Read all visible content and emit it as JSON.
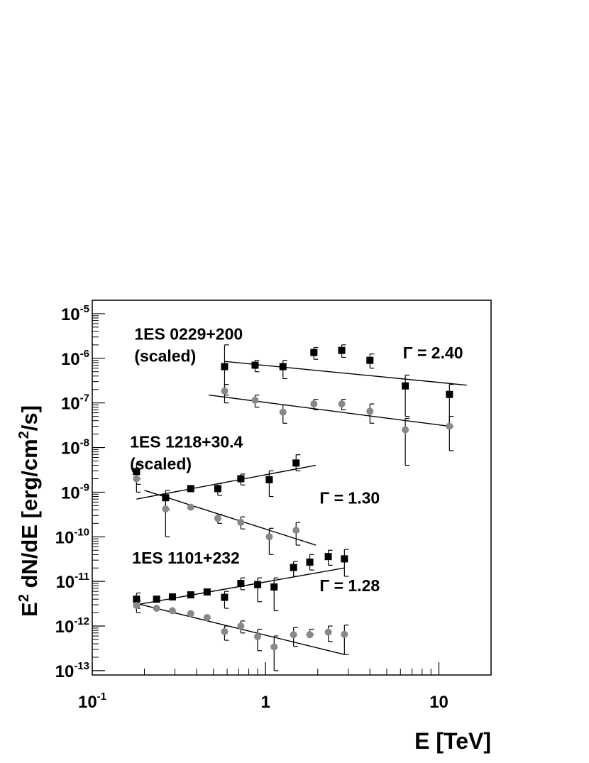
{
  "chart_data": {
    "type": "scatter",
    "xscale": "log",
    "yscale": "log",
    "xlim": [
      0.1,
      20
    ],
    "ylim": [
      8e-14,
      2e-05
    ],
    "xlabel": "E [TeV]",
    "ylabel": {
      "prefix": "E",
      "sup1": "2",
      "mid": " dN/dE [erg/cm",
      "sup2": "2",
      "suffix": "/s]"
    },
    "grid": false,
    "x_ticks": [
      {
        "value": 0.1,
        "base": "10",
        "exp": "-1"
      },
      {
        "value": 1,
        "base": "1",
        "exp": ""
      },
      {
        "value": 10,
        "base": "10",
        "exp": ""
      }
    ],
    "y_ticks": [
      {
        "value": 1e-13,
        "base": "10",
        "exp": "-13"
      },
      {
        "value": 1e-12,
        "base": "10",
        "exp": "-12"
      },
      {
        "value": 1e-11,
        "base": "10",
        "exp": "-11"
      },
      {
        "value": 1e-10,
        "base": "10",
        "exp": "-10"
      },
      {
        "value": 1e-09,
        "base": "10",
        "exp": "-9"
      },
      {
        "value": 1e-08,
        "base": "10",
        "exp": "-8"
      },
      {
        "value": 1e-07,
        "base": "10",
        "exp": "-7"
      },
      {
        "value": 1e-06,
        "base": "10",
        "exp": "-6"
      },
      {
        "value": 1e-05,
        "base": "10",
        "exp": "-5"
      }
    ],
    "annotations": [
      {
        "id": "label-0229",
        "lines": [
          "1ES 0229+200",
          "(scaled)"
        ],
        "x": 0.175,
        "y": 2.6e-06
      },
      {
        "id": "label-1218",
        "lines": [
          "1ES 1218+30.4",
          "(scaled)"
        ],
        "x": 0.165,
        "y": 1e-08
      },
      {
        "id": "label-1101",
        "lines": [
          "1ES 1101+232"
        ],
        "x": 0.17,
        "y": 2.5e-11
      },
      {
        "id": "gamma-0229",
        "lines": [
          "Γ = 2.40"
        ],
        "x": 6.2,
        "y": 1e-06
      },
      {
        "id": "gamma-1218",
        "lines": [
          "Γ = 1.30"
        ],
        "x": 2.05,
        "y": 5.5e-10
      },
      {
        "id": "gamma-1101",
        "lines": [
          "Γ = 1.28"
        ],
        "x": 2.05,
        "y": 6e-12
      }
    ],
    "series": [
      {
        "source": "1ES 0229+200",
        "marker": "square",
        "color": "#000000",
        "points": [
          {
            "x": 0.58,
            "y": 6.5e-07,
            "lo": 1.5e-07,
            "hi": 2e-06
          },
          {
            "x": 0.87,
            "y": 7e-07,
            "lo": 5e-07,
            "hi": 9e-07
          },
          {
            "x": 1.26,
            "y": 6.5e-07,
            "lo": 3.5e-07,
            "hi": 9e-07
          },
          {
            "x": 1.9,
            "y": 1.35e-06,
            "lo": 9.5e-07,
            "hi": 1.75e-06
          },
          {
            "x": 2.75,
            "y": 1.5e-06,
            "lo": 1.05e-06,
            "hi": 2e-06
          },
          {
            "x": 4.0,
            "y": 9e-07,
            "lo": 6e-07,
            "hi": 1.25e-06
          },
          {
            "x": 6.4,
            "y": 2.4e-07,
            "lo": 5e-08,
            "hi": 4.2e-07
          },
          {
            "x": 11.5,
            "y": 1.55e-07,
            "lo": 3e-08,
            "hi": 2.6e-07
          }
        ],
        "fit": {
          "x": [
            0.58,
            14.5
          ],
          "y": [
            8.5e-07,
            2.5e-07
          ]
        }
      },
      {
        "source": "1ES 0229+200",
        "marker": "circle",
        "color": "#888888",
        "points": [
          {
            "x": 0.58,
            "y": 1.85e-07,
            "lo": 1e-07,
            "hi": 2.6e-07
          },
          {
            "x": 0.87,
            "y": 1.15e-07,
            "lo": 8e-08,
            "hi": 1.5e-07
          },
          {
            "x": 1.26,
            "y": 6.2e-08,
            "lo": 3.5e-08,
            "hi": 9e-08
          },
          {
            "x": 1.9,
            "y": 9.5e-08,
            "lo": 7e-08,
            "hi": 1.2e-07
          },
          {
            "x": 2.75,
            "y": 9.5e-08,
            "lo": 7e-08,
            "hi": 1.2e-07
          },
          {
            "x": 4.0,
            "y": 6.5e-08,
            "lo": 3.5e-08,
            "hi": 9.5e-08
          },
          {
            "x": 6.4,
            "y": 2.5e-08,
            "lo": 4e-09,
            "hi": 4.5e-08
          },
          {
            "x": 11.5,
            "y": 3e-08,
            "lo": 8.5e-09,
            "hi": 5e-08
          }
        ],
        "fit": {
          "x": [
            0.47,
            11.5
          ],
          "y": [
            1.5e-07,
            3e-08
          ]
        }
      },
      {
        "source": "1ES 1218+30.4",
        "marker": "square",
        "color": "#000000",
        "points": [
          {
            "x": 0.18,
            "y": 2.9e-09,
            "lo": 1.5e-09,
            "hi": 4.5e-09
          },
          {
            "x": 0.265,
            "y": 7.5e-10,
            "lo": 4e-10,
            "hi": 1.1e-09
          },
          {
            "x": 0.37,
            "y": 1.2e-09,
            "lo": 1.2e-09,
            "hi": 1.2e-09
          },
          {
            "x": 0.53,
            "y": 1.2e-09,
            "lo": 8.5e-10,
            "hi": 1.55e-09
          },
          {
            "x": 0.72,
            "y": 2e-09,
            "lo": 1.45e-09,
            "hi": 2.55e-09
          },
          {
            "x": 1.05,
            "y": 1.9e-09,
            "lo": 8e-10,
            "hi": 3e-09
          },
          {
            "x": 1.5,
            "y": 4.5e-09,
            "lo": 3e-09,
            "hi": 6.9e-09
          }
        ],
        "fit": {
          "x": [
            0.18,
            1.95
          ],
          "y": [
            7e-10,
            4e-09
          ]
        }
      },
      {
        "source": "1ES 1218+30.4",
        "marker": "circle",
        "color": "#888888",
        "points": [
          {
            "x": 0.18,
            "y": 2e-09,
            "lo": 1e-09,
            "hi": 2e-09
          },
          {
            "x": 0.265,
            "y": 4.2e-10,
            "lo": 1e-10,
            "hi": 7.5e-10
          },
          {
            "x": 0.37,
            "y": 4.6e-10,
            "lo": 4.6e-10,
            "hi": 4.6e-10
          },
          {
            "x": 0.53,
            "y": 2.6e-10,
            "lo": 2e-10,
            "hi": 3.2e-10
          },
          {
            "x": 0.72,
            "y": 2.1e-10,
            "lo": 1.5e-10,
            "hi": 2.8e-10
          },
          {
            "x": 1.05,
            "y": 1e-10,
            "lo": 4e-11,
            "hi": 1.55e-10
          },
          {
            "x": 1.5,
            "y": 1.4e-10,
            "lo": 6.5e-11,
            "hi": 2.1e-10
          }
        ],
        "fit": {
          "x": [
            0.2,
            1.95
          ],
          "y": [
            1.1e-09,
            6.5e-11
          ]
        }
      },
      {
        "source": "1ES 1101+232",
        "marker": "square",
        "color": "#000000",
        "points": [
          {
            "x": 0.18,
            "y": 4e-12,
            "lo": 2.5e-12,
            "hi": 5.5e-12
          },
          {
            "x": 0.235,
            "y": 4e-12,
            "lo": 4e-12,
            "hi": 4e-12
          },
          {
            "x": 0.29,
            "y": 4.5e-12,
            "lo": 4.5e-12,
            "hi": 4.5e-12
          },
          {
            "x": 0.37,
            "y": 5e-12,
            "lo": 5e-12,
            "hi": 5e-12
          },
          {
            "x": 0.46,
            "y": 5.8e-12,
            "lo": 5.8e-12,
            "hi": 5.8e-12
          },
          {
            "x": 0.58,
            "y": 4.4e-12,
            "lo": 2.5e-12,
            "hi": 6e-12
          },
          {
            "x": 0.72,
            "y": 9e-12,
            "lo": 6.5e-12,
            "hi": 1.2e-11
          },
          {
            "x": 0.9,
            "y": 8.5e-12,
            "lo": 3.5e-12,
            "hi": 1.2e-11
          },
          {
            "x": 1.12,
            "y": 7.5e-12,
            "lo": 2.2e-12,
            "hi": 1.2e-11
          },
          {
            "x": 1.45,
            "y": 2.05e-11,
            "lo": 1.3e-11,
            "hi": 2.8e-11
          },
          {
            "x": 1.8,
            "y": 2.7e-11,
            "lo": 1.8e-11,
            "hi": 4e-11
          },
          {
            "x": 2.3,
            "y": 3.6e-11,
            "lo": 2.3e-11,
            "hi": 5e-11
          },
          {
            "x": 2.85,
            "y": 3.2e-11,
            "lo": 1.3e-11,
            "hi": 5.2e-11
          }
        ],
        "fit": {
          "x": [
            0.18,
            2.85
          ],
          "y": [
            3e-12,
            2e-11
          ]
        }
      },
      {
        "source": "1ES 1101+232",
        "marker": "circle",
        "color": "#888888",
        "points": [
          {
            "x": 0.18,
            "y": 2.9e-12,
            "lo": 2e-12,
            "hi": 3.8e-12
          },
          {
            "x": 0.235,
            "y": 2.5e-12,
            "lo": 2.5e-12,
            "hi": 2.5e-12
          },
          {
            "x": 0.29,
            "y": 2.2e-12,
            "lo": 2.2e-12,
            "hi": 2.2e-12
          },
          {
            "x": 0.37,
            "y": 1.9e-12,
            "lo": 1.9e-12,
            "hi": 1.9e-12
          },
          {
            "x": 0.46,
            "y": 1.55e-12,
            "lo": 1.55e-12,
            "hi": 1.55e-12
          },
          {
            "x": 0.58,
            "y": 7.5e-13,
            "lo": 4.8e-13,
            "hi": 1e-12
          },
          {
            "x": 0.72,
            "y": 1e-12,
            "lo": 7e-13,
            "hi": 1.3e-12
          },
          {
            "x": 0.9,
            "y": 5.8e-13,
            "lo": 2.8e-13,
            "hi": 8.5e-13
          },
          {
            "x": 1.12,
            "y": 3.4e-13,
            "lo": 1e-13,
            "hi": 6e-13
          },
          {
            "x": 1.45,
            "y": 6.4e-13,
            "lo": 3.5e-13,
            "hi": 9.3e-13
          },
          {
            "x": 1.8,
            "y": 6.4e-13,
            "lo": 6.4e-13,
            "hi": 8.5e-13
          },
          {
            "x": 2.3,
            "y": 7.3e-13,
            "lo": 4.5e-13,
            "hi": 1e-12
          },
          {
            "x": 2.85,
            "y": 6.5e-13,
            "lo": 2.3e-13,
            "hi": 1.05e-12
          }
        ],
        "fit": {
          "x": [
            0.18,
            2.85
          ],
          "y": [
            3.2e-12,
            2.3e-13
          ]
        }
      }
    ]
  }
}
